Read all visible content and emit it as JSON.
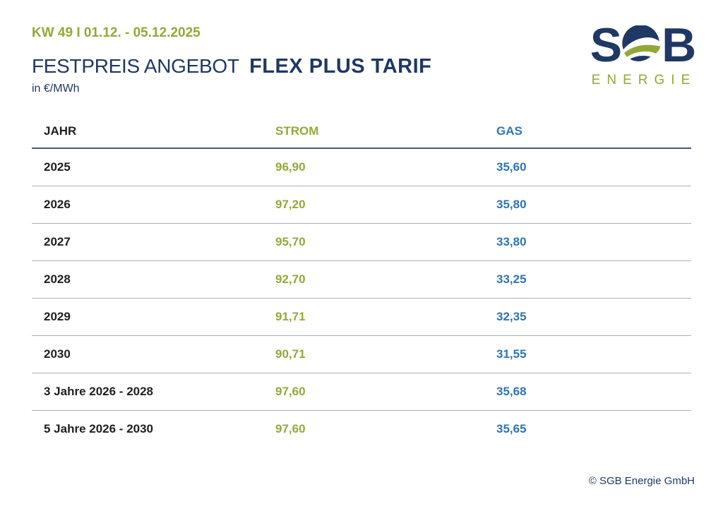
{
  "header": {
    "week_label": "KW 49 I 01.12. - 05.12.2025",
    "title_regular": "FESTPREIS ANGEBOT",
    "title_bold": "FLEX PLUS TARIF",
    "unit": "in €/MWh"
  },
  "logo": {
    "letter_left": "S",
    "letter_right": "B",
    "subtitle": "ENERGIE"
  },
  "table": {
    "columns": [
      "JAHR",
      "STROM",
      "GAS"
    ],
    "rows": [
      {
        "jahr": "2025",
        "strom": "96,90",
        "gas": "35,60"
      },
      {
        "jahr": "2026",
        "strom": "97,20",
        "gas": "35,80"
      },
      {
        "jahr": "2027",
        "strom": "95,70",
        "gas": "33,80"
      },
      {
        "jahr": "2028",
        "strom": "92,70",
        "gas": "33,25"
      },
      {
        "jahr": "2029",
        "strom": "91,71",
        "gas": "32,35"
      },
      {
        "jahr": "2030",
        "strom": "90,71",
        "gas": "31,55"
      },
      {
        "jahr": "3 Jahre 2026 - 2028",
        "strom": "97,60",
        "gas": "35,68"
      },
      {
        "jahr": "5 Jahre 2026 - 2030",
        "strom": "97,60",
        "gas": "35,65"
      }
    ]
  },
  "footer": {
    "copyright": "© SGB Energie GmbH"
  },
  "colors": {
    "navy": "#1F3864",
    "green": "#94A838",
    "blue": "#2E74B5",
    "ink": "#1f1f1f",
    "line_light": "#A8B0C0",
    "line_dark": "#46587E"
  }
}
